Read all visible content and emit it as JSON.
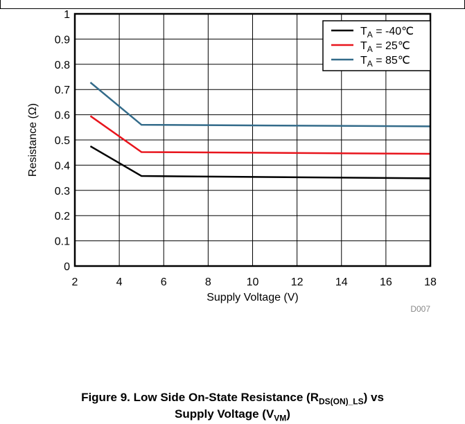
{
  "chart_data": {
    "type": "line",
    "xlabel": "Supply Voltage (V)",
    "ylabel": "Resistance (Ω)",
    "xlim": [
      2,
      18
    ],
    "ylim": [
      0,
      1
    ],
    "xticks": [
      "2",
      "4",
      "6",
      "8",
      "10",
      "12",
      "14",
      "16",
      "18"
    ],
    "yticks": [
      "0",
      "0.1",
      "0.2",
      "0.3",
      "0.4",
      "0.5",
      "0.6",
      "0.7",
      "0.8",
      "0.9",
      "1"
    ],
    "grid": true,
    "legend_position": "top-right",
    "note": "D007",
    "series": [
      {
        "name_main": "T",
        "name_sub": "A",
        "name_rest": " = -40℃",
        "color": "#000000",
        "x": [
          2.7,
          5,
          18
        ],
        "y": [
          0.475,
          0.357,
          0.348
        ]
      },
      {
        "name_main": "T",
        "name_sub": "A",
        "name_rest": " = 25℃",
        "color": "#e8141c",
        "x": [
          2.7,
          5,
          18
        ],
        "y": [
          0.595,
          0.452,
          0.445
        ]
      },
      {
        "name_main": "T",
        "name_sub": "A",
        "name_rest": " = 85℃",
        "color": "#336b8a",
        "x": [
          2.7,
          5,
          18
        ],
        "y": [
          0.728,
          0.56,
          0.554
        ]
      }
    ]
  },
  "caption": {
    "line1_prefix": "Figure 9. Low Side On-State Resistance (R",
    "line1_sub": "DS(ON)_LS",
    "line1_suffix": ") vs",
    "line2_prefix": "Supply Voltage (V",
    "line2_sub": "VM",
    "line2_suffix": ")"
  }
}
